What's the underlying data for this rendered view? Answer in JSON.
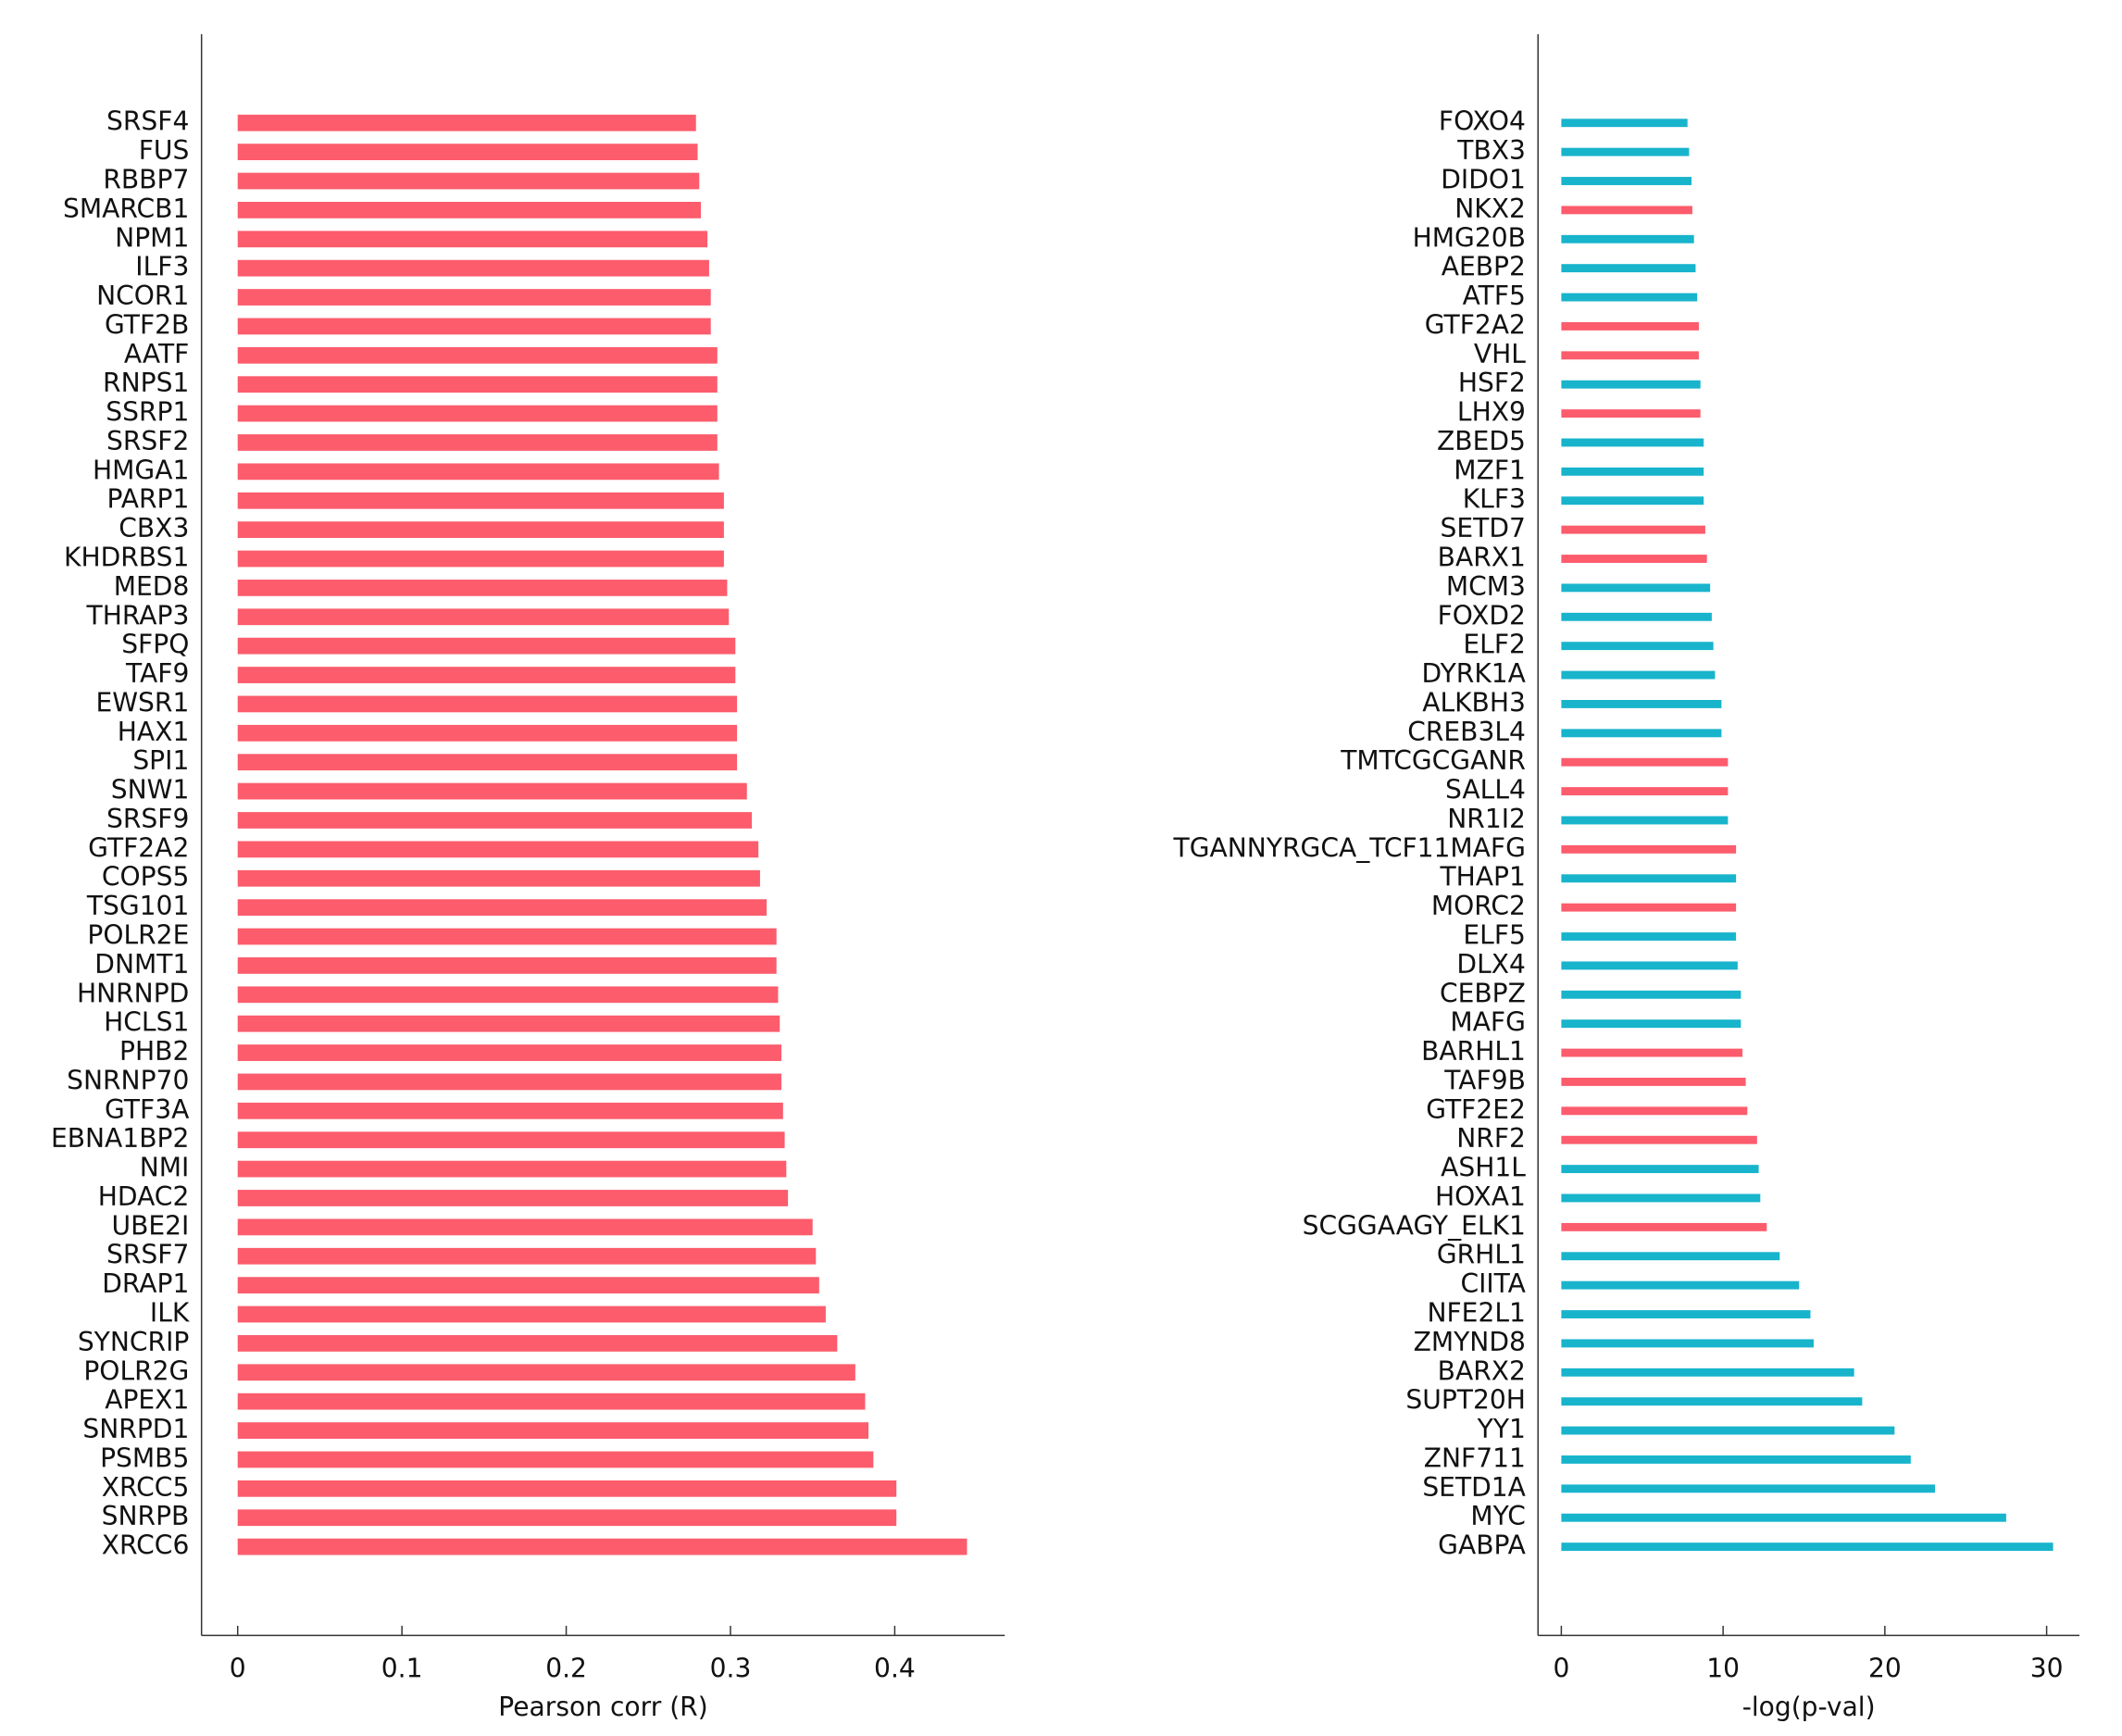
{
  "chart_data": [
    {
      "type": "bar",
      "orientation": "horizontal",
      "xlabel": "Pearson corr (R)",
      "categories": [
        "SRSF4",
        "FUS",
        "RBBP7",
        "SMARCB1",
        "NPM1",
        "ILF3",
        "NCOR1",
        "GTF2B",
        "AATF",
        "RNPS1",
        "SSRP1",
        "SRSF2",
        "HMGA1",
        "PARP1",
        "CBX3",
        "KHDRBS1",
        "MED8",
        "THRAP3",
        "SFPQ",
        "TAF9",
        "EWSR1",
        "HAX1",
        "SPI1",
        "SNW1",
        "SRSF9",
        "GTF2A2",
        "COPS5",
        "TSG101",
        "POLR2E",
        "DNMT1",
        "HNRNPD",
        "HCLS1",
        "PHB2",
        "SNRNP70",
        "GTF3A",
        "EBNA1BP2",
        "NMI",
        "HDAC2",
        "UBE2I",
        "SRSF7",
        "DRAP1",
        "ILK",
        "SYNCRIP",
        "POLR2G",
        "APEX1",
        "SNRPD1",
        "PSMB5",
        "XRCC5",
        "SNRPB",
        "XRCC6"
      ],
      "values": [
        0.279,
        0.28,
        0.281,
        0.282,
        0.286,
        0.287,
        0.288,
        0.288,
        0.292,
        0.292,
        0.292,
        0.292,
        0.293,
        0.296,
        0.296,
        0.296,
        0.298,
        0.299,
        0.303,
        0.303,
        0.304,
        0.304,
        0.304,
        0.31,
        0.313,
        0.317,
        0.318,
        0.322,
        0.328,
        0.328,
        0.329,
        0.33,
        0.331,
        0.331,
        0.332,
        0.333,
        0.334,
        0.335,
        0.35,
        0.352,
        0.354,
        0.358,
        0.365,
        0.376,
        0.382,
        0.384,
        0.387,
        0.401,
        0.401,
        0.444
      ],
      "color": "#fc5c6c",
      "xlim": [
        -0.022,
        0.467
      ],
      "xticks": [
        0,
        0.1,
        0.2,
        0.3,
        0.4
      ]
    },
    {
      "type": "bar",
      "orientation": "horizontal",
      "xlabel": "-log(p-val)",
      "categories": [
        "FOXO4",
        "TBX3",
        "DIDO1",
        "NKX2",
        "HMG20B",
        "AEBP2",
        "ATF5",
        "GTF2A2",
        "VHL",
        "HSF2",
        "LHX9",
        "ZBED5",
        "MZF1",
        "KLF3",
        "SETD7",
        "BARX1",
        "MCM3",
        "FOXD2",
        "ELF2",
        "DYRK1A",
        "ALKBH3",
        "CREB3L4",
        "TMTCGCGANR",
        "SALL4",
        "NR1I2",
        "TGANNYRGCA_TCF11MAFG",
        "THAP1",
        "MORC2",
        "ELF5",
        "DLX4",
        "CEBPZ",
        "MAFG",
        "BARHL1",
        "TAF9B",
        "GTF2E2",
        "NRF2",
        "ASH1L",
        "HOXA1",
        "SCGGAAGY_ELK1",
        "GRHL1",
        "CIITA",
        "NFE2L1",
        "ZMYND8",
        "BARX2",
        "SUPT20H",
        "YY1",
        "ZNF711",
        "SETD1A",
        "MYC",
        "GABPA"
      ],
      "values": [
        7.8,
        7.9,
        8.05,
        8.1,
        8.2,
        8.3,
        8.4,
        8.5,
        8.5,
        8.6,
        8.6,
        8.8,
        8.8,
        8.8,
        8.9,
        9.0,
        9.2,
        9.3,
        9.4,
        9.5,
        9.9,
        9.9,
        10.3,
        10.3,
        10.3,
        10.8,
        10.8,
        10.8,
        10.8,
        10.9,
        11.1,
        11.1,
        11.2,
        11.4,
        11.5,
        12.1,
        12.2,
        12.3,
        12.7,
        13.5,
        14.7,
        15.4,
        15.6,
        18.1,
        18.6,
        20.6,
        21.6,
        23.1,
        27.5,
        30.4
      ],
      "colors": [
        "#18b4cc",
        "#18b4cc",
        "#18b4cc",
        "#fc5c6c",
        "#18b4cc",
        "#18b4cc",
        "#18b4cc",
        "#fc5c6c",
        "#fc5c6c",
        "#18b4cc",
        "#fc5c6c",
        "#18b4cc",
        "#18b4cc",
        "#18b4cc",
        "#fc5c6c",
        "#fc5c6c",
        "#18b4cc",
        "#18b4cc",
        "#18b4cc",
        "#18b4cc",
        "#18b4cc",
        "#18b4cc",
        "#fc5c6c",
        "#fc5c6c",
        "#18b4cc",
        "#fc5c6c",
        "#18b4cc",
        "#fc5c6c",
        "#18b4cc",
        "#18b4cc",
        "#18b4cc",
        "#18b4cc",
        "#fc5c6c",
        "#fc5c6c",
        "#fc5c6c",
        "#fc5c6c",
        "#18b4cc",
        "#18b4cc",
        "#fc5c6c",
        "#18b4cc",
        "#18b4cc",
        "#18b4cc",
        "#18b4cc",
        "#18b4cc",
        "#18b4cc",
        "#18b4cc",
        "#18b4cc",
        "#18b4cc",
        "#18b4cc",
        "#18b4cc"
      ],
      "xlim": [
        -1.44,
        32.03
      ],
      "xticks": [
        0,
        10,
        20,
        30
      ]
    }
  ]
}
